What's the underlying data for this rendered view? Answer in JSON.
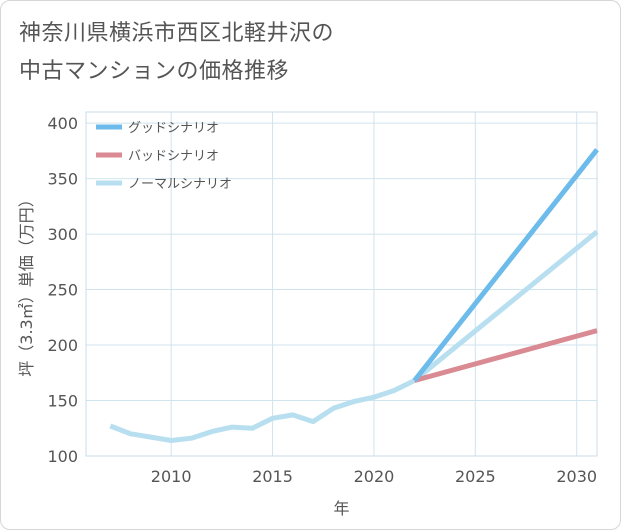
{
  "title_line1": "神奈川県横浜市西区北軽井沢の",
  "title_line2": "中古マンションの価格推移",
  "chart_data": {
    "type": "line",
    "xlabel": "年",
    "ylabel": "坪（3.3㎡）単価（万円）",
    "xlim": [
      2005.8,
      2031
    ],
    "ylim": [
      100,
      410
    ],
    "xticks": [
      2010,
      2015,
      2020,
      2025,
      2030
    ],
    "yticks": [
      100,
      150,
      200,
      250,
      300,
      350,
      400
    ],
    "grid": true,
    "legend_position": "top-left",
    "series": [
      {
        "name": "グッドシナリオ",
        "color": "#6cbbea",
        "points": [
          [
            2022,
            168
          ],
          [
            2031,
            376
          ]
        ]
      },
      {
        "name": "バッドシナリオ",
        "color": "#d98a92",
        "points": [
          [
            2022,
            168
          ],
          [
            2031,
            213
          ]
        ]
      },
      {
        "name": "ノーマルシナリオ",
        "color": "#b8dff0",
        "points": [
          [
            2007,
            127
          ],
          [
            2008,
            120
          ],
          [
            2009,
            117
          ],
          [
            2010,
            114
          ],
          [
            2011,
            116
          ],
          [
            2012,
            122
          ],
          [
            2013,
            126
          ],
          [
            2014,
            125
          ],
          [
            2015,
            134
          ],
          [
            2016,
            137
          ],
          [
            2017,
            131
          ],
          [
            2018,
            143
          ],
          [
            2019,
            149
          ],
          [
            2020,
            153
          ],
          [
            2021,
            159
          ],
          [
            2022,
            168
          ],
          [
            2031,
            302
          ]
        ]
      }
    ]
  }
}
